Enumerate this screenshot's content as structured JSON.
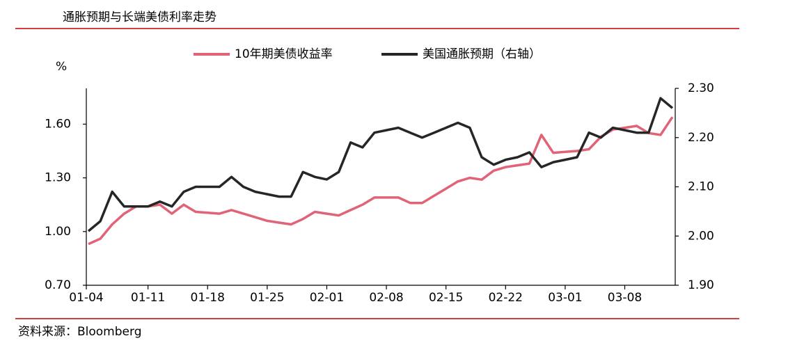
{
  "chart_data": {
    "type": "line",
    "title": "通胀预期与长端美债利率走势",
    "y_label": "%",
    "source": "资料来源：Bloomberg",
    "categories": [
      "01-04",
      null,
      null,
      null,
      null,
      "01-11",
      null,
      null,
      null,
      null,
      "01-18",
      null,
      null,
      null,
      null,
      "01-25",
      null,
      null,
      null,
      null,
      "02-01",
      null,
      null,
      null,
      null,
      "02-08",
      null,
      null,
      null,
      null,
      "02-15",
      null,
      null,
      null,
      null,
      "02-22",
      null,
      null,
      null,
      null,
      "03-01",
      null,
      null,
      null,
      null,
      "03-08",
      null,
      null,
      null,
      null
    ],
    "series": [
      {
        "name": "10年期美债收益率",
        "color": "#e06377",
        "axis": "y",
        "values": [
          0.93,
          0.96,
          1.04,
          1.1,
          1.14,
          1.14,
          1.15,
          1.1,
          1.15,
          1.11,
          1.105,
          1.1,
          1.12,
          1.1,
          1.08,
          1.06,
          1.05,
          1.04,
          1.07,
          1.11,
          1.1,
          1.09,
          1.12,
          1.15,
          1.19,
          1.19,
          1.19,
          1.16,
          1.16,
          1.2,
          1.24,
          1.28,
          1.3,
          1.29,
          1.34,
          1.36,
          1.37,
          1.38,
          1.54,
          1.44,
          1.445,
          1.45,
          1.46,
          1.53,
          1.57,
          1.58,
          1.59,
          1.55,
          1.54,
          1.64
        ]
      },
      {
        "name": "美国通胀预期（右轴）",
        "color": "#262626",
        "axis": "y2",
        "values": [
          2.01,
          2.03,
          2.09,
          2.06,
          2.06,
          2.06,
          2.07,
          2.06,
          2.09,
          2.1,
          2.1,
          2.1,
          2.12,
          2.1,
          2.09,
          2.085,
          2.08,
          2.08,
          2.13,
          2.12,
          2.115,
          2.13,
          2.19,
          2.18,
          2.21,
          2.215,
          2.22,
          2.21,
          2.2,
          2.21,
          2.22,
          2.23,
          2.22,
          2.16,
          2.145,
          2.155,
          2.16,
          2.17,
          2.14,
          2.15,
          2.155,
          2.16,
          2.21,
          2.2,
          2.22,
          2.215,
          2.21,
          2.21,
          2.28,
          2.26
        ]
      }
    ],
    "ylim": [
      0.7,
      1.8
    ],
    "yticks": [
      {
        "value": 0.7,
        "label": "0.70"
      },
      {
        "value": 1.0,
        "label": "1.00"
      },
      {
        "value": 1.3,
        "label": "1.30"
      },
      {
        "value": 1.6,
        "label": "1.60"
      }
    ],
    "y2lim": [
      1.9,
      2.3
    ],
    "y2ticks": [
      {
        "value": 1.9,
        "label": "1.90"
      },
      {
        "value": 2.0,
        "label": "2.00"
      },
      {
        "value": 2.1,
        "label": "2.10"
      },
      {
        "value": 2.2,
        "label": "2.20"
      },
      {
        "value": 2.3,
        "label": "2.30"
      }
    ],
    "legend": "top"
  }
}
